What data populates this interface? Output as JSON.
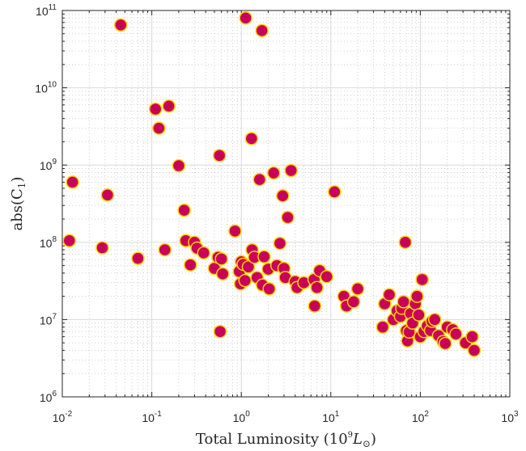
{
  "chart_data": {
    "type": "scatter",
    "title": "",
    "xlabel_main": "Total Luminosity (10",
    "xlabel_exp": "9",
    "xlabel_unit": "L",
    "xlabel_unit_sub": "⊙",
    "xlabel_close": ")",
    "ylabel_main": "abs(C",
    "ylabel_sub": "1",
    "ylabel_close": ")",
    "x_scale": "log",
    "y_scale": "log",
    "xlim": [
      0.01,
      1000
    ],
    "ylim": [
      1000000,
      100000000000
    ],
    "grid": true,
    "x_ticks": [
      {
        "base": "10",
        "exp": "-2",
        "value": 0.01
      },
      {
        "base": "10",
        "exp": "-1",
        "value": 0.1
      },
      {
        "base": "10",
        "exp": "0",
        "value": 1
      },
      {
        "base": "10",
        "exp": "1",
        "value": 10
      },
      {
        "base": "10",
        "exp": "2",
        "value": 100
      },
      {
        "base": "10",
        "exp": "3",
        "value": 1000
      }
    ],
    "y_ticks": [
      {
        "base": "10",
        "exp": "6",
        "value": 1000000
      },
      {
        "base": "10",
        "exp": "7",
        "value": 10000000
      },
      {
        "base": "10",
        "exp": "8",
        "value": 100000000
      },
      {
        "base": "10",
        "exp": "9",
        "value": 1000000000
      },
      {
        "base": "10",
        "exp": "10",
        "value": 10000000000
      },
      {
        "base": "10",
        "exp": "11",
        "value": 100000000000
      }
    ],
    "colors": {
      "marker_fill": "#c8005a",
      "marker_edge": "#ffd400"
    },
    "points": [
      {
        "x": 0.012,
        "y": 105000000.0
      },
      {
        "x": 0.013,
        "y": 600000000.0
      },
      {
        "x": 0.028,
        "y": 85000000.0
      },
      {
        "x": 0.032,
        "y": 410000000.0
      },
      {
        "x": 0.045,
        "y": 65000000000.0
      },
      {
        "x": 0.07,
        "y": 62000000.0
      },
      {
        "x": 0.11,
        "y": 5300000000.0
      },
      {
        "x": 0.12,
        "y": 3000000000.0
      },
      {
        "x": 0.14,
        "y": 80000000.0
      },
      {
        "x": 0.155,
        "y": 5800000000.0
      },
      {
        "x": 0.2,
        "y": 980000000.0
      },
      {
        "x": 0.23,
        "y": 260000000.0
      },
      {
        "x": 0.24,
        "y": 105000000.0
      },
      {
        "x": 0.27,
        "y": 51000000.0
      },
      {
        "x": 0.3,
        "y": 100000000.0
      },
      {
        "x": 0.32,
        "y": 84000000.0
      },
      {
        "x": 0.38,
        "y": 73000000.0
      },
      {
        "x": 0.5,
        "y": 46000000.0
      },
      {
        "x": 0.55,
        "y": 64000000.0
      },
      {
        "x": 0.57,
        "y": 1330000000.0
      },
      {
        "x": 0.58,
        "y": 7000000.0
      },
      {
        "x": 0.6,
        "y": 61000000.0
      },
      {
        "x": 0.62,
        "y": 39000000.0
      },
      {
        "x": 0.85,
        "y": 140000000.0
      },
      {
        "x": 0.95,
        "y": 42000000.0
      },
      {
        "x": 0.98,
        "y": 29000000.0
      },
      {
        "x": 1.0,
        "y": 56000000.0
      },
      {
        "x": 1.05,
        "y": 52000000.0
      },
      {
        "x": 1.1,
        "y": 32000000.0
      },
      {
        "x": 1.12,
        "y": 80000000000.0
      },
      {
        "x": 1.2,
        "y": 48000000.0
      },
      {
        "x": 1.3,
        "y": 2200000000.0
      },
      {
        "x": 1.32,
        "y": 80000000.0
      },
      {
        "x": 1.4,
        "y": 64000000.0
      },
      {
        "x": 1.5,
        "y": 35000000.0
      },
      {
        "x": 1.6,
        "y": 650000000.0
      },
      {
        "x": 1.7,
        "y": 55000000000.0
      },
      {
        "x": 1.72,
        "y": 28000000.0
      },
      {
        "x": 1.8,
        "y": 65000000.0
      },
      {
        "x": 2.0,
        "y": 45000000.0
      },
      {
        "x": 2.05,
        "y": 25000000.0
      },
      {
        "x": 2.3,
        "y": 790000000.0
      },
      {
        "x": 2.5,
        "y": 50000000.0
      },
      {
        "x": 2.7,
        "y": 97000000.0
      },
      {
        "x": 2.9,
        "y": 400000000.0
      },
      {
        "x": 3.0,
        "y": 46000000.0
      },
      {
        "x": 3.1,
        "y": 35000000.0
      },
      {
        "x": 3.3,
        "y": 210000000.0
      },
      {
        "x": 3.6,
        "y": 850000000.0
      },
      {
        "x": 4.0,
        "y": 31000000.0
      },
      {
        "x": 4.2,
        "y": 26000000.0
      },
      {
        "x": 5.0,
        "y": 30000000.0
      },
      {
        "x": 6.5,
        "y": 33000000.0
      },
      {
        "x": 6.6,
        "y": 15000000.0
      },
      {
        "x": 7.0,
        "y": 26000000.0
      },
      {
        "x": 7.5,
        "y": 43000000.0
      },
      {
        "x": 9.0,
        "y": 36000000.0
      },
      {
        "x": 11.0,
        "y": 450000000.0
      },
      {
        "x": 14.0,
        "y": 20000000.0
      },
      {
        "x": 15.0,
        "y": 15000000.0
      },
      {
        "x": 18.0,
        "y": 17000000.0
      },
      {
        "x": 20.0,
        "y": 25000000.0
      },
      {
        "x": 38.0,
        "y": 8000000.0
      },
      {
        "x": 40.0,
        "y": 16000000.0
      },
      {
        "x": 45.0,
        "y": 21000000.0
      },
      {
        "x": 50.0,
        "y": 10000000.0
      },
      {
        "x": 55.0,
        "y": 13000000.0
      },
      {
        "x": 60.0,
        "y": 11000000.0
      },
      {
        "x": 62.0,
        "y": 14000000.0
      },
      {
        "x": 65.0,
        "y": 17000000.0
      },
      {
        "x": 68.0,
        "y": 100000000.0
      },
      {
        "x": 70.0,
        "y": 7200000.0
      },
      {
        "x": 72.0,
        "y": 5300000.0
      },
      {
        "x": 75.0,
        "y": 6900000.0
      },
      {
        "x": 78.0,
        "y": 12000000.0
      },
      {
        "x": 82.0,
        "y": 9000000.0
      },
      {
        "x": 88.0,
        "y": 16000000.0
      },
      {
        "x": 92.0,
        "y": 20000000.0
      },
      {
        "x": 96.0,
        "y": 11500000.0
      },
      {
        "x": 100.0,
        "y": 6000000.0
      },
      {
        "x": 105.0,
        "y": 33000000.0
      },
      {
        "x": 110.0,
        "y": 7000000.0
      },
      {
        "x": 120.0,
        "y": 8300000.0
      },
      {
        "x": 130.0,
        "y": 7200000.0
      },
      {
        "x": 135.0,
        "y": 9500000.0
      },
      {
        "x": 145.0,
        "y": 10000000.0
      },
      {
        "x": 160.0,
        "y": 6200000.0
      },
      {
        "x": 180.0,
        "y": 5200000.0
      },
      {
        "x": 190.0,
        "y": 4900000.0
      },
      {
        "x": 200.0,
        "y": 8000000.0
      },
      {
        "x": 230.0,
        "y": 7400000.0
      },
      {
        "x": 250.0,
        "y": 6500000.0
      },
      {
        "x": 320.0,
        "y": 5000000.0
      },
      {
        "x": 380.0,
        "y": 6000000.0
      },
      {
        "x": 400.0,
        "y": 4000000.0
      }
    ]
  }
}
